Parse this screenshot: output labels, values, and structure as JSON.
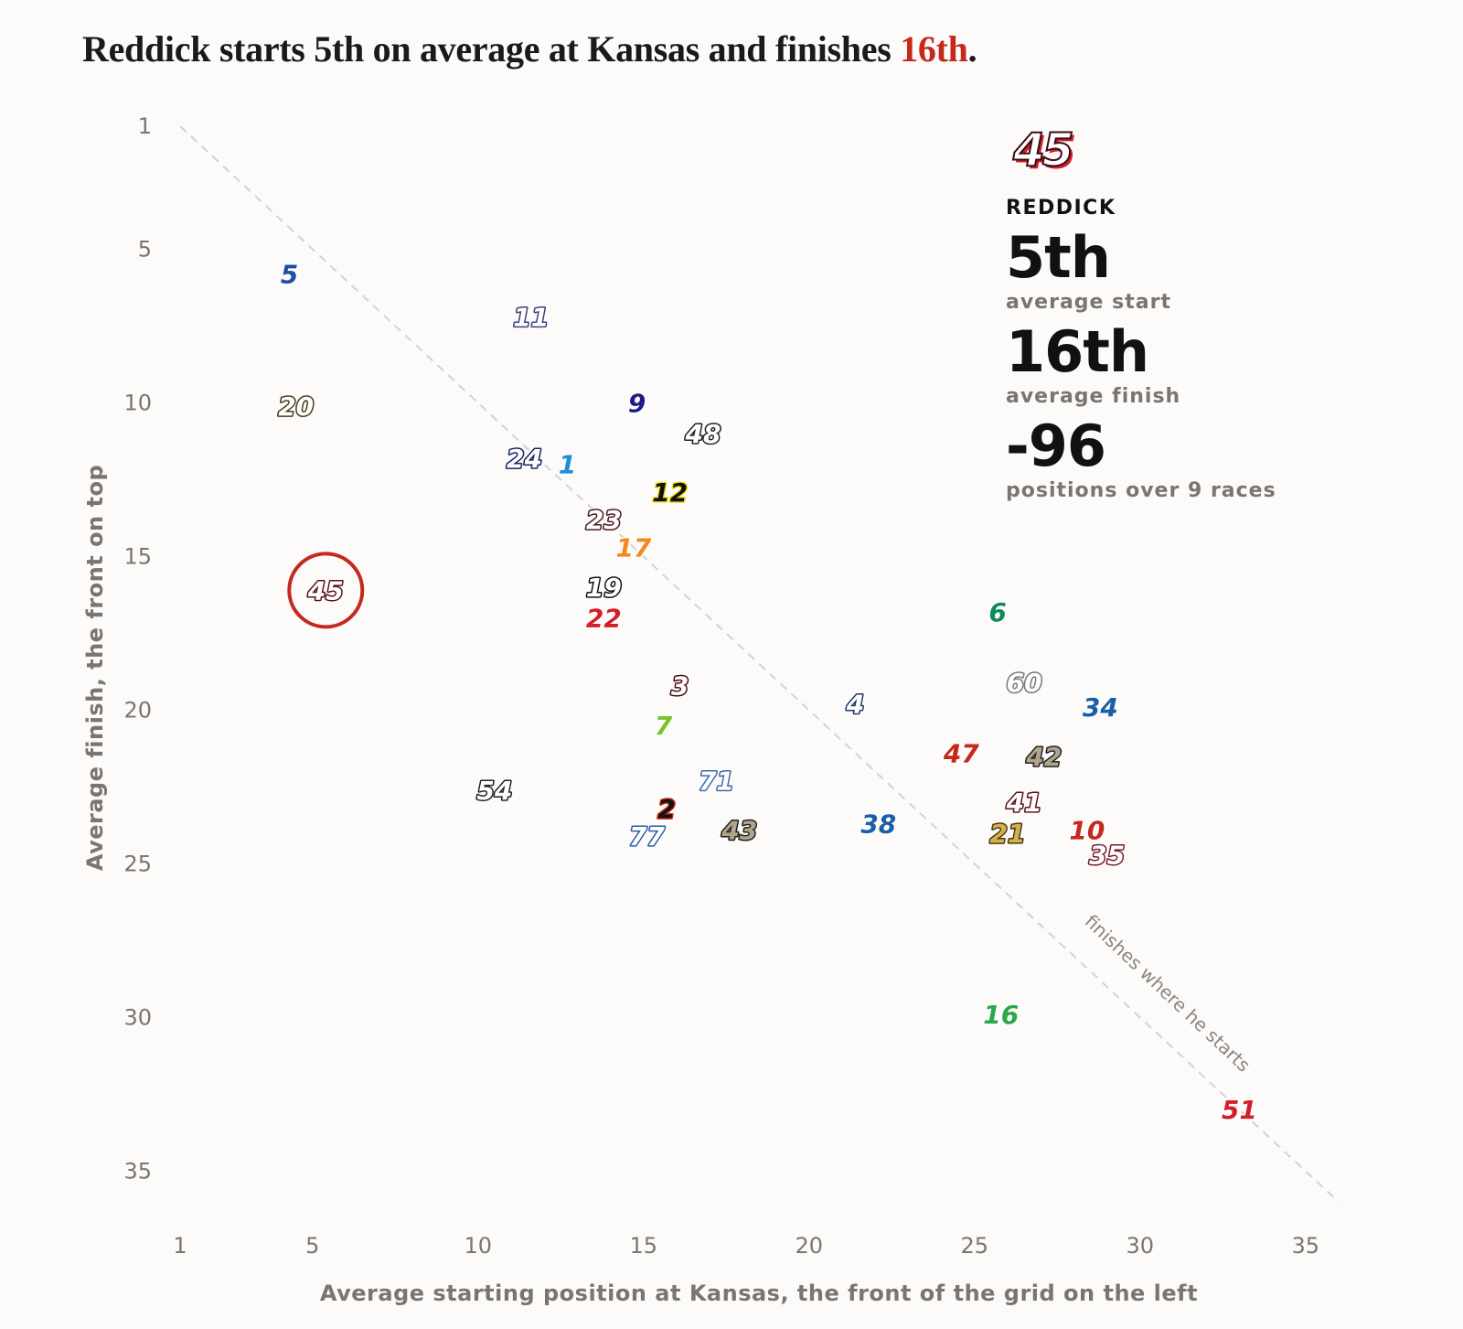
{
  "title": {
    "text_before": "Reddick starts 5th on average at Kansas and finishes ",
    "highlight": "16th",
    "text_after": ".",
    "highlight_color": "#c42a1c"
  },
  "panel": {
    "car_number": "45",
    "driver": "REDDICK",
    "start_value": "5th",
    "start_label": "average start",
    "finish_value": "16th",
    "finish_label": "average finish",
    "delta_value": "-96",
    "delta_label": "positions over 9 races"
  },
  "chart_data": {
    "type": "scatter",
    "title": "Reddick starts 5th on average at Kansas and finishes 16th.",
    "xlabel": "Average starting position at Kansas, the front of the grid on the left",
    "ylabel": "Average finish, the front on top",
    "xlim": [
      1,
      35
    ],
    "ylim": [
      1,
      35
    ],
    "y_inverted": true,
    "x_ticks": [
      1,
      5,
      10,
      15,
      20,
      25,
      30,
      35
    ],
    "y_ticks": [
      1,
      5,
      10,
      15,
      20,
      25,
      30,
      35
    ],
    "reference_line": {
      "label": "finishes where he starts",
      "from": [
        1,
        1
      ],
      "to": [
        36,
        36
      ]
    },
    "highlight": "45",
    "highlight_color": "#c42a1c",
    "points": [
      {
        "car": "5",
        "x": 4.3,
        "y": 5.8,
        "color": "#1e4fa0"
      },
      {
        "car": "11",
        "x": 11.6,
        "y": 7.2,
        "color": "#ffffff",
        "outline": "#3a3f7a"
      },
      {
        "car": "20",
        "x": 4.5,
        "y": 10.1,
        "color": "#ffffff",
        "outline": "#4a3a1a"
      },
      {
        "car": "9",
        "x": 14.8,
        "y": 10.0,
        "color": "#201a8a"
      },
      {
        "car": "48",
        "x": 16.8,
        "y": 11.0,
        "color": "#ffffff",
        "outline": "#222222"
      },
      {
        "car": "24",
        "x": 11.4,
        "y": 11.8,
        "color": "#ffffff",
        "outline": "#1a2360"
      },
      {
        "car": "1",
        "x": 12.7,
        "y": 12.0,
        "color": "#1e8ed8"
      },
      {
        "car": "12",
        "x": 15.8,
        "y": 12.9,
        "color": "#111111",
        "outline": "#f2e01a"
      },
      {
        "car": "23",
        "x": 13.8,
        "y": 13.8,
        "color": "#ffffff",
        "outline": "#4a1a24"
      },
      {
        "car": "17",
        "x": 14.7,
        "y": 14.7,
        "color": "#f28a1e"
      },
      {
        "car": "19",
        "x": 13.8,
        "y": 16.0,
        "color": "#ffffff",
        "outline": "#111111"
      },
      {
        "car": "45",
        "x": 5.4,
        "y": 16.1,
        "color": "#ffffff",
        "outline": "#5a0f1a"
      },
      {
        "car": "22",
        "x": 13.8,
        "y": 17.0,
        "color": "#d21f2b"
      },
      {
        "car": "6",
        "x": 25.7,
        "y": 16.8,
        "color": "#0f8a5a"
      },
      {
        "car": "3",
        "x": 16.1,
        "y": 19.2,
        "color": "#ffffff",
        "outline": "#4a0a14"
      },
      {
        "car": "4",
        "x": 21.4,
        "y": 19.8,
        "color": "#ffffff",
        "outline": "#1a3a6a"
      },
      {
        "car": "60",
        "x": 26.5,
        "y": 19.1,
        "color": "#ffffff",
        "outline": "#777777"
      },
      {
        "car": "34",
        "x": 28.8,
        "y": 19.9,
        "color": "#1a5fa8"
      },
      {
        "car": "7",
        "x": 15.6,
        "y": 20.5,
        "color": "#7ac22a"
      },
      {
        "car": "47",
        "x": 24.6,
        "y": 21.4,
        "color": "#c42a1c"
      },
      {
        "car": "42",
        "x": 27.1,
        "y": 21.5,
        "color": "#b2a48a",
        "outline": "#222222"
      },
      {
        "car": "71",
        "x": 17.2,
        "y": 22.3,
        "color": "#ffffff",
        "outline": "#3a6aa8"
      },
      {
        "car": "54",
        "x": 10.5,
        "y": 22.6,
        "color": "#ffffff",
        "outline": "#222222"
      },
      {
        "car": "2",
        "x": 15.7,
        "y": 23.2,
        "color": "#111111",
        "outline": "#c42a1c"
      },
      {
        "car": "41",
        "x": 26.5,
        "y": 23.0,
        "color": "#ffffff",
        "outline": "#5a0f1a"
      },
      {
        "car": "38",
        "x": 22.1,
        "y": 23.7,
        "color": "#1a5fa8"
      },
      {
        "car": "21",
        "x": 26.0,
        "y": 24.0,
        "color": "#d4b24a",
        "outline": "#4a3a1a"
      },
      {
        "car": "10",
        "x": 28.4,
        "y": 23.9,
        "color": "#c42a1c"
      },
      {
        "car": "43",
        "x": 17.9,
        "y": 23.9,
        "color": "#b2a48a",
        "outline": "#222222"
      },
      {
        "car": "77",
        "x": 15.1,
        "y": 24.1,
        "color": "#ffffff",
        "outline": "#2a5aa8"
      },
      {
        "car": "35",
        "x": 29.0,
        "y": 24.7,
        "color": "#ffffff",
        "outline": "#7a1a2a"
      },
      {
        "car": "16",
        "x": 25.8,
        "y": 29.9,
        "color": "#2aa84a"
      },
      {
        "car": "51",
        "x": 33.0,
        "y": 33.0,
        "color": "#d21f2b"
      }
    ]
  }
}
